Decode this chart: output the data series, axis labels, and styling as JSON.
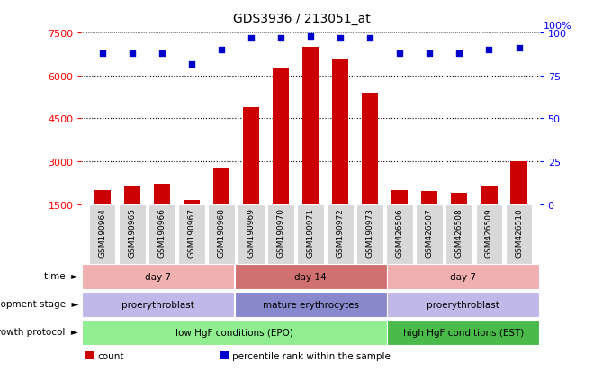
{
  "title": "GDS3936 / 213051_at",
  "samples": [
    "GSM190964",
    "GSM190965",
    "GSM190966",
    "GSM190967",
    "GSM190968",
    "GSM190969",
    "GSM190970",
    "GSM190971",
    "GSM190972",
    "GSM190973",
    "GSM426506",
    "GSM426507",
    "GSM426508",
    "GSM426509",
    "GSM426510"
  ],
  "counts": [
    2000,
    2150,
    2200,
    1650,
    2750,
    4900,
    6250,
    7000,
    6600,
    5400,
    2000,
    1950,
    1900,
    2150,
    3000
  ],
  "percentile_ranks": [
    88,
    88,
    88,
    82,
    90,
    97,
    97,
    98,
    97,
    97,
    88,
    88,
    88,
    90,
    91
  ],
  "bar_color": "#cc0000",
  "dot_color": "#0000cc",
  "ylim_left": [
    1500,
    7500
  ],
  "ylim_right": [
    0,
    100
  ],
  "yticks_left": [
    1500,
    3000,
    4500,
    6000,
    7500
  ],
  "yticks_right": [
    0,
    25,
    50,
    75,
    100
  ],
  "grid_values": [
    3000,
    4500,
    6000
  ],
  "annotation_rows": [
    {
      "label": "growth protocol",
      "segments": [
        {
          "text": "low HgF conditions (EPO)",
          "start": 0,
          "end": 9,
          "color": "#90ee90"
        },
        {
          "text": "high HgF conditions (EST)",
          "start": 10,
          "end": 14,
          "color": "#4aba4a"
        }
      ]
    },
    {
      "label": "development stage",
      "segments": [
        {
          "text": "proerythroblast",
          "start": 0,
          "end": 4,
          "color": "#c0b8e8"
        },
        {
          "text": "mature erythrocytes",
          "start": 5,
          "end": 9,
          "color": "#8888cc"
        },
        {
          "text": "proerythroblast",
          "start": 10,
          "end": 14,
          "color": "#c0b8e8"
        }
      ]
    },
    {
      "label": "time",
      "segments": [
        {
          "text": "day 7",
          "start": 0,
          "end": 4,
          "color": "#f0b0b0"
        },
        {
          "text": "day 14",
          "start": 5,
          "end": 9,
          "color": "#d07070"
        },
        {
          "text": "day 7",
          "start": 10,
          "end": 14,
          "color": "#f0b0b0"
        }
      ]
    }
  ],
  "legend_items": [
    {
      "color": "#cc0000",
      "label": "count"
    },
    {
      "color": "#0000cc",
      "label": "percentile rank within the sample"
    }
  ],
  "tick_area_bg": "#d8d8d8",
  "background_color": "#ffffff"
}
